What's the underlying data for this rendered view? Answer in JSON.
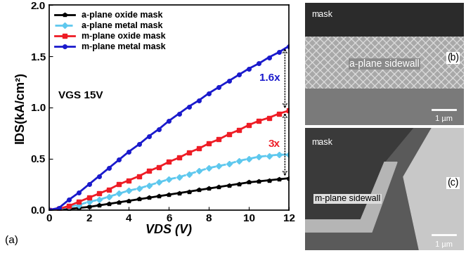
{
  "chart_data": {
    "type": "line",
    "panel_label": "(a)",
    "x_label": "VDS (V)",
    "y_label": "IDS(kA/cm²)",
    "xlim": [
      0,
      12
    ],
    "xticks": [
      0,
      2,
      4,
      6,
      8,
      10,
      12
    ],
    "ylim": [
      0,
      2.0
    ],
    "yticks": [
      {
        "value": 0,
        "label": "0.0"
      },
      {
        "value": 0.5,
        "label": "0.5"
      },
      {
        "value": 1.0,
        "label": "1.0"
      },
      {
        "value": 1.5,
        "label": "1.5"
      },
      {
        "value": 2.0,
        "label": "2.0"
      }
    ],
    "legend": "upper left",
    "grid": false,
    "x": [
      0,
      0.5,
      1,
      1.5,
      2,
      2.5,
      3,
      3.5,
      4,
      4.5,
      5,
      5.5,
      6,
      6.5,
      7,
      7.5,
      8,
      8.5,
      9,
      9.5,
      10,
      10.5,
      11,
      11.5,
      12
    ],
    "series": [
      {
        "name": "a-plane oxide mask",
        "color": "#000000",
        "marker": "pentagon",
        "line_style": "solid",
        "values": [
          0,
          0.005,
          0.01,
          0.02,
          0.03,
          0.045,
          0.06,
          0.075,
          0.09,
          0.105,
          0.12,
          0.135,
          0.15,
          0.165,
          0.18,
          0.195,
          0.21,
          0.225,
          0.24,
          0.255,
          0.27,
          0.28,
          0.29,
          0.3,
          0.31
        ]
      },
      {
        "name": "a-plane metal mask",
        "color": "#5ec8ee",
        "marker": "diamond",
        "line_style": "dashed",
        "values": [
          0,
          0.01,
          0.03,
          0.05,
          0.08,
          0.1,
          0.13,
          0.16,
          0.19,
          0.21,
          0.24,
          0.27,
          0.3,
          0.32,
          0.35,
          0.38,
          0.41,
          0.43,
          0.45,
          0.48,
          0.5,
          0.52,
          0.53,
          0.54,
          0.54
        ]
      },
      {
        "name": "m-plane oxide mask",
        "color": "#ee1c25",
        "marker": "square",
        "line_style": "solid",
        "values": [
          0,
          0.01,
          0.04,
          0.08,
          0.12,
          0.16,
          0.2,
          0.25,
          0.29,
          0.33,
          0.38,
          0.42,
          0.47,
          0.51,
          0.56,
          0.6,
          0.65,
          0.69,
          0.74,
          0.78,
          0.83,
          0.87,
          0.9,
          0.94,
          0.97
        ]
      },
      {
        "name": "m-plane metal mask",
        "color": "#1a1acc",
        "marker": "circle",
        "line_style": "solid",
        "values": [
          0,
          0.02,
          0.1,
          0.17,
          0.25,
          0.33,
          0.41,
          0.49,
          0.57,
          0.64,
          0.72,
          0.79,
          0.87,
          0.94,
          1.01,
          1.07,
          1.14,
          1.2,
          1.26,
          1.32,
          1.38,
          1.43,
          1.49,
          1.54,
          1.6
        ]
      }
    ],
    "annotations": [
      {
        "text": "VGS 15V",
        "color": "#000000"
      },
      {
        "text": "1.6x",
        "color": "#1a1acc",
        "x": 11.8,
        "from": 0.97,
        "to": 1.6
      },
      {
        "text": "3x",
        "color": "#ee1c25",
        "x": 11.8,
        "from": 0.31,
        "to": 0.97
      }
    ]
  },
  "images": [
    {
      "label": "(b)",
      "mask": "mask",
      "sidewall": "a-plane sidewall",
      "scale_bar": "1 µm"
    },
    {
      "label": "(c)",
      "mask": "mask",
      "sidewall": "m-plane sidewall",
      "scale_bar": "1 µm"
    }
  ]
}
